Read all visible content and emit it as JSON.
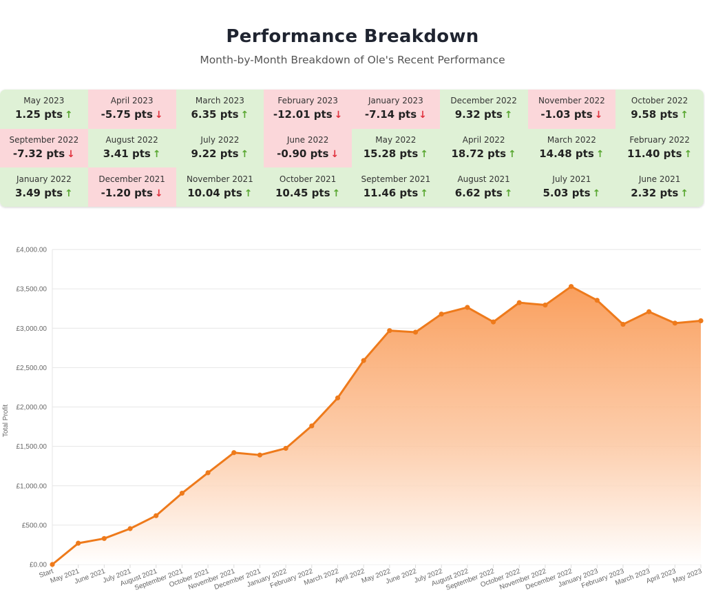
{
  "header": {
    "title": "Performance Breakdown",
    "subtitle": "Month-by-Month Breakdown of Ole's Recent Performance"
  },
  "colors": {
    "positive_bg": "#dff1d6",
    "negative_bg": "#fbd7da",
    "up_arrow": "#5aa832",
    "down_arrow": "#e0313d",
    "line": "#ee7a1b"
  },
  "breakdown": [
    {
      "month": "May 2023",
      "value": "1.25 pts",
      "dir": "up"
    },
    {
      "month": "April 2023",
      "value": "-5.75 pts",
      "dir": "down"
    },
    {
      "month": "March 2023",
      "value": "6.35 pts",
      "dir": "up"
    },
    {
      "month": "February 2023",
      "value": "-12.01 pts",
      "dir": "down"
    },
    {
      "month": "January 2023",
      "value": "-7.14 pts",
      "dir": "down"
    },
    {
      "month": "December 2022",
      "value": "9.32 pts",
      "dir": "up"
    },
    {
      "month": "November 2022",
      "value": "-1.03 pts",
      "dir": "down"
    },
    {
      "month": "October 2022",
      "value": "9.58 pts",
      "dir": "up"
    },
    {
      "month": "September 2022",
      "value": "-7.32 pts",
      "dir": "down"
    },
    {
      "month": "August 2022",
      "value": "3.41 pts",
      "dir": "up"
    },
    {
      "month": "July 2022",
      "value": "9.22 pts",
      "dir": "up"
    },
    {
      "month": "June 2022",
      "value": "-0.90 pts",
      "dir": "down"
    },
    {
      "month": "May 2022",
      "value": "15.28 pts",
      "dir": "up"
    },
    {
      "month": "April 2022",
      "value": "18.72 pts",
      "dir": "up"
    },
    {
      "month": "March 2022",
      "value": "14.48 pts",
      "dir": "up"
    },
    {
      "month": "February 2022",
      "value": "11.40 pts",
      "dir": "up"
    },
    {
      "month": "January 2022",
      "value": "3.49 pts",
      "dir": "up"
    },
    {
      "month": "December 2021",
      "value": "-1.20 pts",
      "dir": "down"
    },
    {
      "month": "November 2021",
      "value": "10.04 pts",
      "dir": "up"
    },
    {
      "month": "October 2021",
      "value": "10.45 pts",
      "dir": "up"
    },
    {
      "month": "September 2021",
      "value": "11.46 pts",
      "dir": "up"
    },
    {
      "month": "August 2021",
      "value": "6.62 pts",
      "dir": "up"
    },
    {
      "month": "July 2021",
      "value": "5.03 pts",
      "dir": "up"
    },
    {
      "month": "June 2021",
      "value": "2.32 pts",
      "dir": "up"
    }
  ],
  "chart_data": {
    "type": "area",
    "title": "",
    "xlabel": "",
    "ylabel": "Total Profit",
    "ylim": [
      0,
      4000
    ],
    "yticks": [
      0,
      500,
      1000,
      1500,
      2000,
      2500,
      3000,
      3500,
      4000
    ],
    "ytick_labels": [
      "£0.00",
      "£500.00",
      "£1,000.00",
      "£1,500.00",
      "£2,000.00",
      "£2,500.00",
      "£3,000.00",
      "£3,500.00",
      "£4,000.00"
    ],
    "grid": true,
    "categories": [
      "Start",
      "May 2021",
      "June 2021",
      "July 2021",
      "August 2021",
      "September 2021",
      "October 2021",
      "November 2021",
      "December 2021",
      "January 2022",
      "February 2022",
      "March 2022",
      "April 2022",
      "May 2022",
      "June 2022",
      "July 2022",
      "August 2022",
      "September 2022",
      "October 2022",
      "November 2022",
      "December 2022",
      "January 2023",
      "February 2023",
      "March 2023",
      "April 2023",
      "May 2023"
    ],
    "series": [
      {
        "values": [
          0,
          270,
          330,
          455,
          620,
          905,
          1165,
          1420,
          1390,
          1475,
          1760,
          2115,
          2590,
          2970,
          2950,
          3180,
          3265,
          3080,
          3325,
          3295,
          3530,
          3355,
          3050,
          3210,
          3065,
          3095
        ]
      }
    ]
  }
}
